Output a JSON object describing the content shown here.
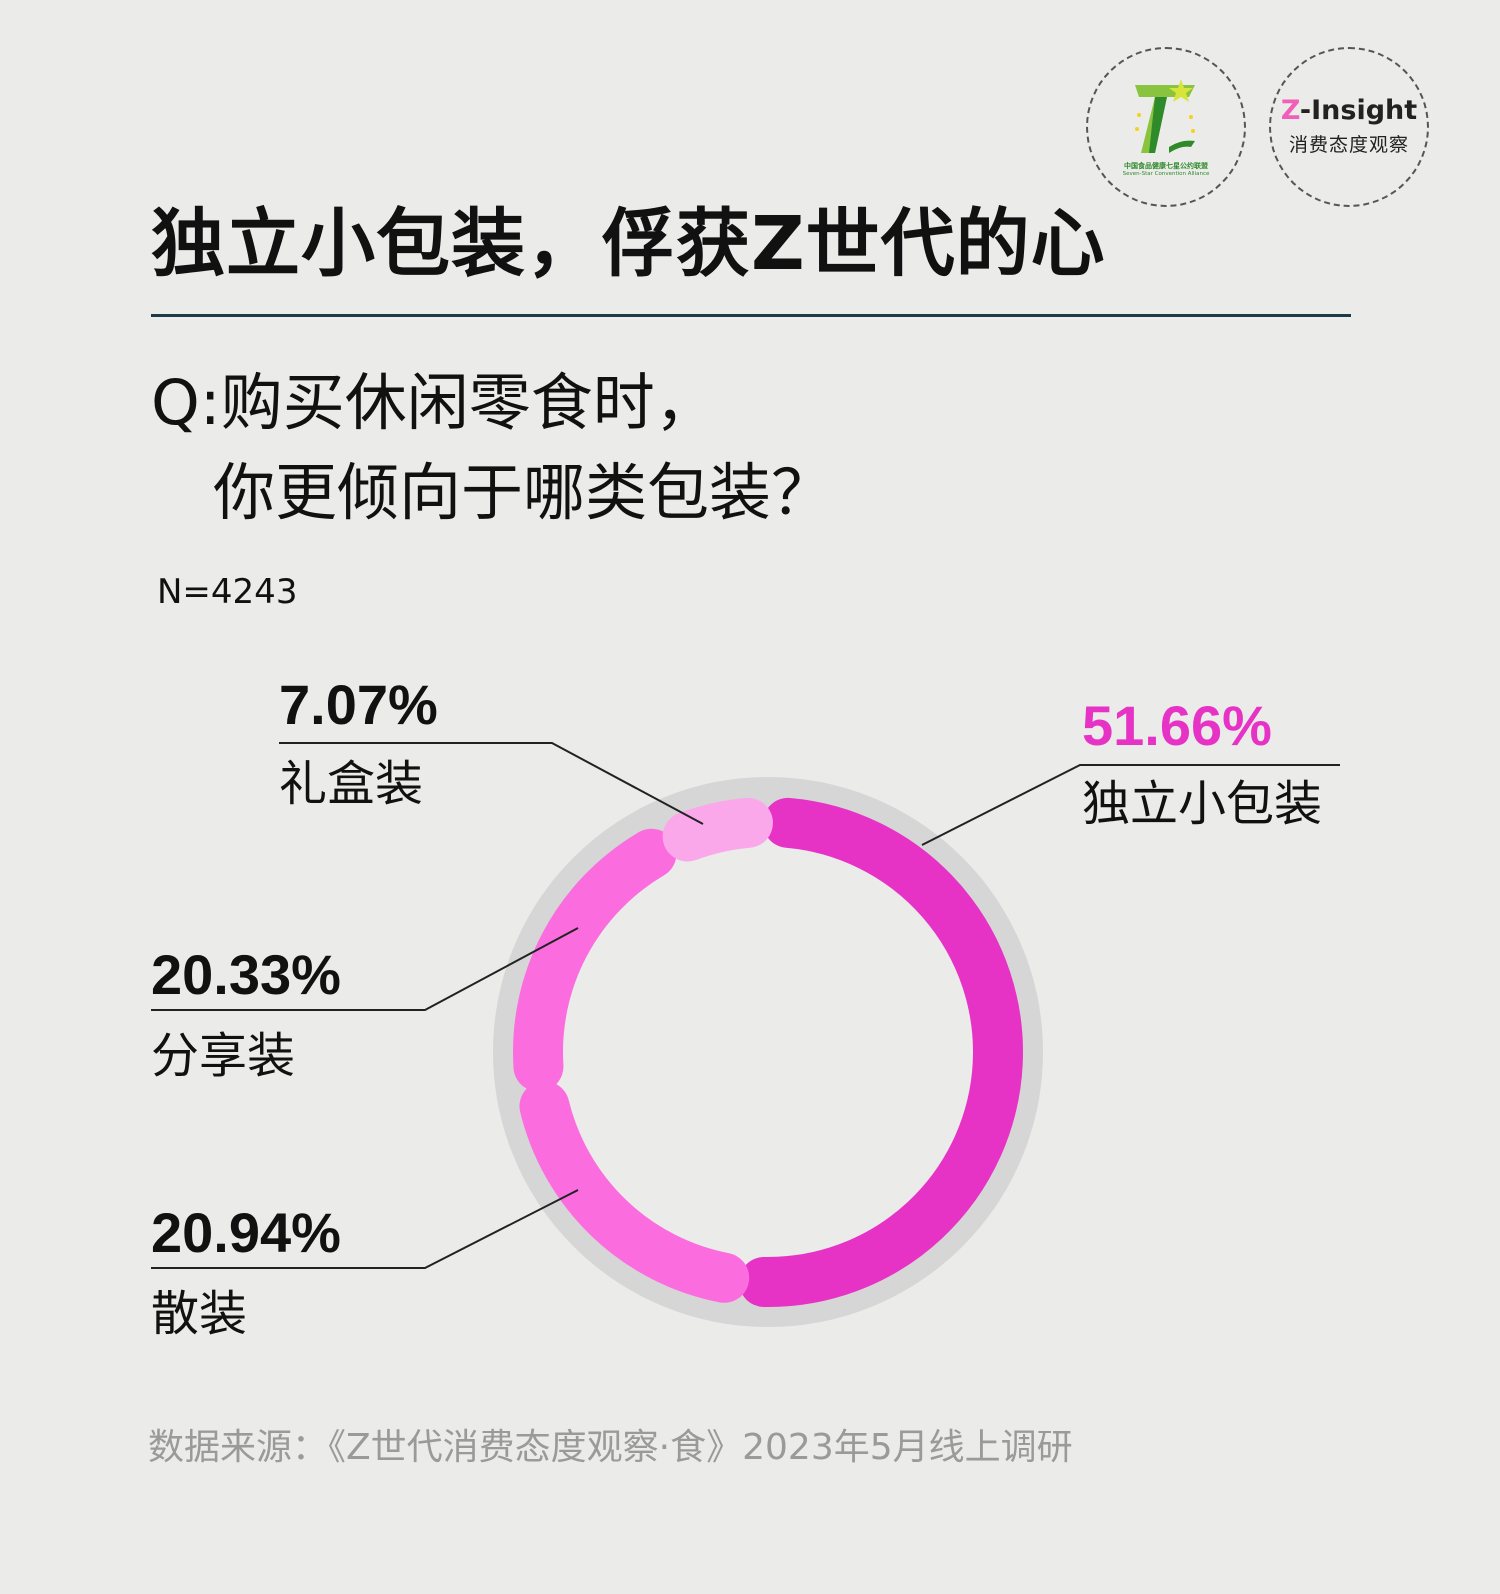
{
  "logos": {
    "alliance": {
      "icon": "seven-star-logo-icon",
      "name_cn": "中国食品健康七星公约联盟",
      "name_en": "Seven-Star Convention Alliance"
    },
    "zinsight": {
      "brand_z": "Z",
      "brand_rest": "-Insight",
      "subtitle": "消费态度观察"
    }
  },
  "title": "独立小包装，俘获Z世代的心",
  "question": {
    "line1": "Q:购买休闲零食时，",
    "line2": "你更倾向于哪类包装？"
  },
  "sample_size": "N=4243",
  "source": "数据来源：《Z世代消费态度观察·食》2023年5月线上调研",
  "colors": {
    "primary": "#e633c6",
    "secondary": "#fb6ddf",
    "light": "#fba8eb",
    "track": "#d6d6d6",
    "background": "#ebebea"
  },
  "chart_data": {
    "type": "pie",
    "subtype": "donut",
    "categories": [
      "独立小包装",
      "散装",
      "分享装",
      "礼盒装"
    ],
    "values": [
      51.66,
      20.94,
      20.33,
      7.07
    ],
    "labels": [
      "51.66%",
      "20.94%",
      "20.33%",
      "7.07%"
    ],
    "unit": "%",
    "start": "top",
    "direction": "clockwise",
    "colors": [
      "#e633c6",
      "#fb6ddf",
      "#fb6ddf",
      "#fba8eb"
    ],
    "label_colors": [
      "#e633c6",
      "#111111",
      "#111111",
      "#111111"
    ]
  }
}
